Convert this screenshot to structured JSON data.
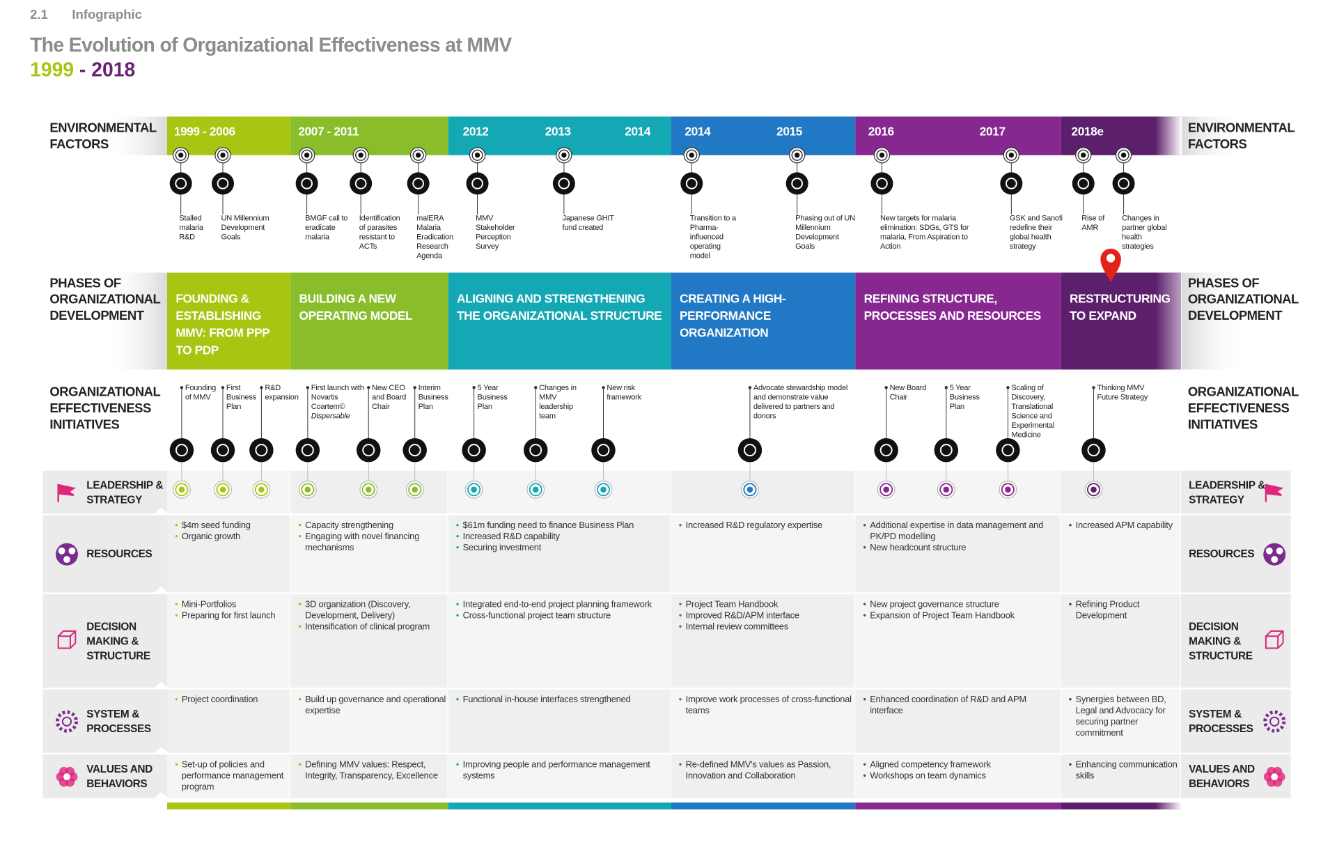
{
  "header": {
    "section": "2.1",
    "label": "Infographic",
    "title": "The Evolution of Organizational Effectiveness at MMV",
    "years": {
      "start": "1999",
      "separator": "-",
      "end": "2018"
    }
  },
  "row_labels": {
    "environment": "ENVIRONMENTAL FACTORS",
    "phases": "PHASES OF ORGANIZATIONAL DEVELOPMENT",
    "initiatives": "ORGANIZATIONAL EFFECTIVENESS INITIATIVES"
  },
  "dimensions": [
    "LEADERSHIP & STRATEGY",
    "RESOURCES",
    "DECISION MAKING & STRUCTURE",
    "SYSTEM & PROCESSES",
    "VALUES AND BEHAVIORS"
  ],
  "phases": [
    {
      "color": "#a9c511",
      "years": [
        "1999 - 2006"
      ],
      "title": "FOUNDING & ESTABLISHING MMV: FROM PPP TO PDP",
      "events": [
        "Stalled malaria R&D",
        "UN Millennium Development Goals"
      ],
      "initiatives": [
        {
          "text": "Founding of MMV"
        },
        {
          "text": "First Business Plan"
        },
        {
          "text": "R&D expansion"
        }
      ],
      "resources": [
        "$4m seed funding",
        "Organic growth"
      ],
      "decision": [
        "Mini-Portfolios",
        "Preparing for first launch"
      ],
      "system": [
        "Project coordination"
      ],
      "values": [
        "Set-up of policies and performance management program"
      ]
    },
    {
      "color": "#89bd2a",
      "years": [
        "2007 - 2011"
      ],
      "title": "BUILDING A NEW OPERATING MODEL",
      "events": [
        "BMGF call to eradicate malaria",
        "Identification of parasites resistant to ACTs",
        "malERA Malaria Eradication Research Agenda"
      ],
      "initiatives": [
        {
          "text": "First launch with Novartis Coartem©",
          "italic": "Dispersable"
        },
        {
          "text": "New CEO and Board Chair"
        },
        {
          "text": "Interim Business Plan"
        }
      ],
      "resources": [
        "Capacity strengthening",
        "Engaging with novel financing mechanisms"
      ],
      "decision": [
        "3D organization (Discovery, Development, Delivery)",
        "Intensification of clinical program"
      ],
      "system": [
        "Build up governance and operational expertise"
      ],
      "values": [
        "Defining MMV values: Respect, Integrity, Transparency, Excellence"
      ]
    },
    {
      "color": "#14a7b4",
      "years": [
        "2012",
        "2013",
        "2014"
      ],
      "title": "ALIGNING AND STRENGTHENING THE ORGANIZATIONAL STRUCTURE",
      "events": [
        "MMV Stakeholder Perception Survey",
        "Japanese GHIT fund created"
      ],
      "initiatives": [
        {
          "text": "5 Year Business Plan"
        },
        {
          "text": "Changes in MMV leadership team"
        },
        {
          "text": "New risk framework"
        }
      ],
      "resources": [
        "$61m funding need to finance Business Plan",
        "Increased R&D capability",
        "Securing investment"
      ],
      "decision": [
        "Integrated end-to-end project planning framework",
        "Cross-functional project team structure"
      ],
      "system": [
        "Functional in-house interfaces strengthened"
      ],
      "values": [
        "Improving people and performance management systems"
      ]
    },
    {
      "color": "#2178c4",
      "years": [
        "2014",
        "2015"
      ],
      "title": "CREATING A HIGH-PERFORMANCE ORGANIZATION",
      "events": [
        "Transition to a Pharma-influenced operating model",
        "Phasing out of UN Millennium Development Goals"
      ],
      "initiatives": [
        {
          "text": "Advocate stewardship model and demonstrate value delivered to partners and donors"
        }
      ],
      "resources": [
        "Increased R&D regulatory expertise"
      ],
      "decision": [
        "Project Team Handbook",
        "Improved R&D/APM interface",
        "Internal review committees"
      ],
      "system": [
        "Improve work processes of cross-functional teams"
      ],
      "values": [
        "Re-defined MMV's values as Passion, Innovation and Collaboration"
      ]
    },
    {
      "color": "#862890",
      "years": [
        "2016",
        "2017"
      ],
      "title": "REFINING STRUCTURE, PROCESSES AND RESOURCES",
      "events": [
        "New targets for malaria elimination: SDGs, GTS for malaria, From Aspiration to Action",
        "GSK and Sanofi redefine their global health strategy"
      ],
      "initiatives": [
        {
          "text": "New Board Chair"
        },
        {
          "text": "5 Year Business Plan"
        },
        {
          "text": "Scaling of Discovery, Translational Science and Experimental Medicine"
        }
      ],
      "resources": [
        "Additional expertise in data management and PK/PD modelling",
        "New headcount structure"
      ],
      "decision": [
        "New project governance structure",
        "Expansion of Project Team Handbook"
      ],
      "system": [
        "Enhanced coordination of R&D and APM interface"
      ],
      "values": [
        "Aligned competency framework",
        "Workshops on team dynamics"
      ]
    },
    {
      "color": "#5c1f6c",
      "years": [
        "2018e"
      ],
      "title": "RESTRUCTURING TO EXPAND",
      "events": [
        "Rise of AMR",
        "Changes in partner global health strategies"
      ],
      "initiatives": [
        {
          "text": "Thinking MMV Future Strategy"
        }
      ],
      "resources": [
        "Increased APM capability"
      ],
      "decision": [
        "Refining Product Development"
      ],
      "system": [
        "Synergies between BD, Legal and Advocacy for securing partner commitment"
      ],
      "values": [
        "Enhancing communication skills"
      ]
    }
  ]
}
